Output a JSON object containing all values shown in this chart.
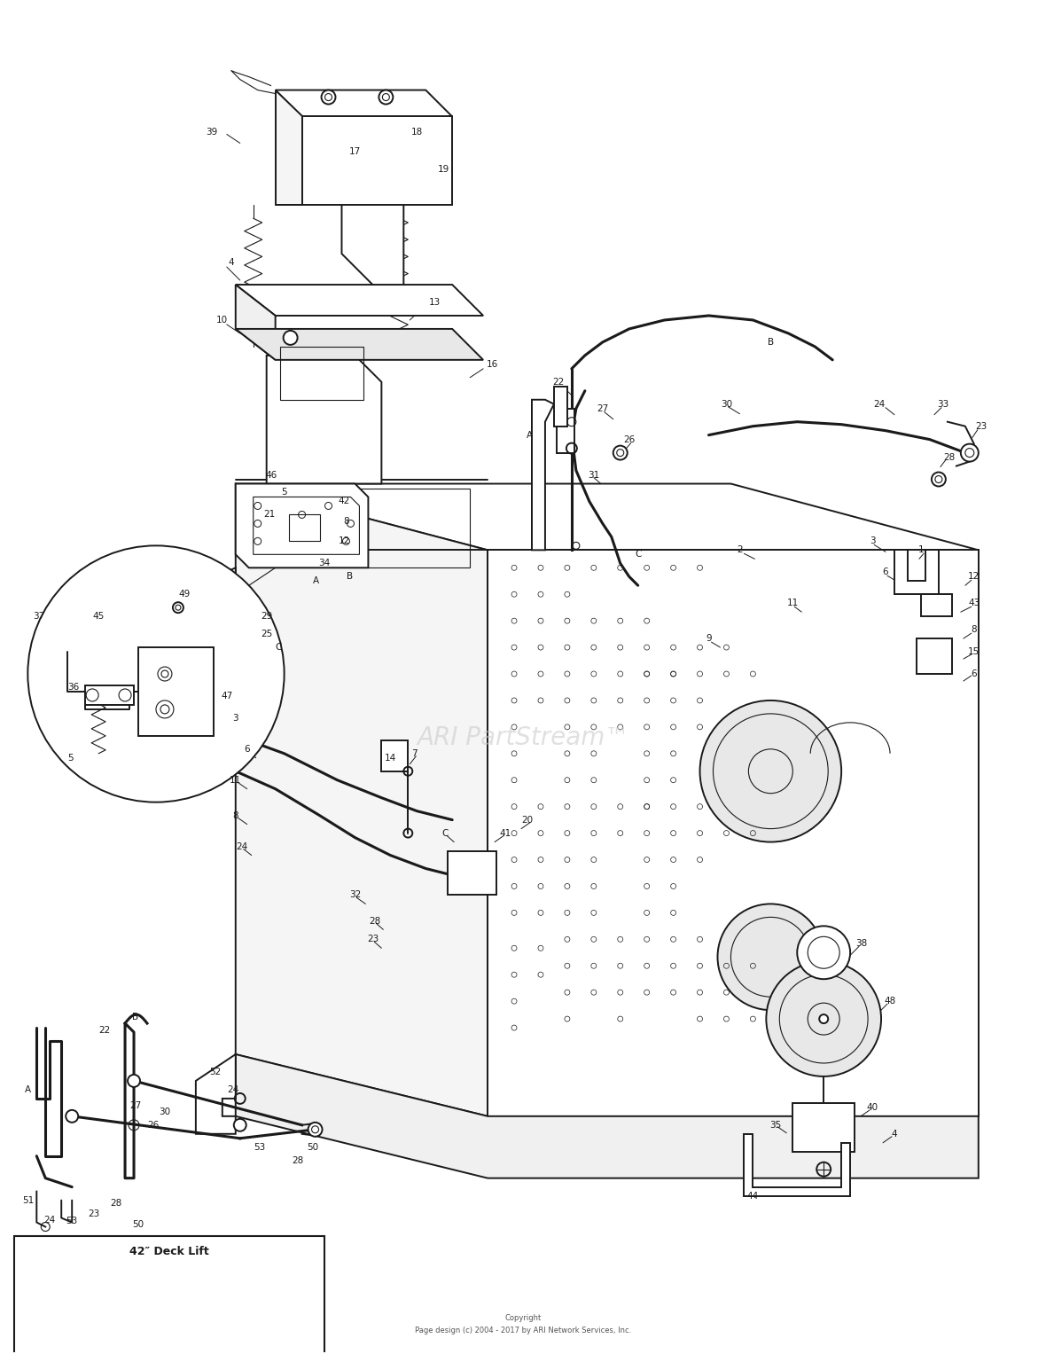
{
  "watermark": "ARI PartStream™",
  "copyright_line1": "Copyright",
  "copyright_line2": "Page design (c) 2004 - 2017 by ARI Network Services, Inc.",
  "inset_label": "42″ Deck Lift",
  "background_color": "#ffffff",
  "line_color": "#1a1a1a",
  "watermark_color": "#c8c8c8",
  "fig_width": 11.8,
  "fig_height": 15.27,
  "dpi": 100
}
